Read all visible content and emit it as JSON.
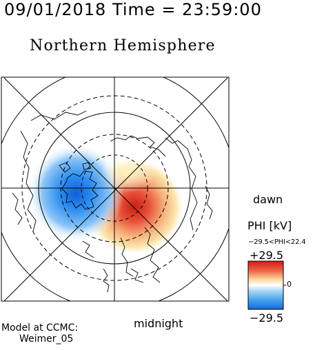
{
  "header": {
    "datetime": "09/01/2018 Time = 23:59:00",
    "hemisphere": "Northern Hemisphere"
  },
  "map": {
    "projection": "polar",
    "labels": {
      "dawn": "dawn",
      "midnight": "midnight"
    },
    "colors": {
      "positive": "#d42a1f",
      "negative": "#1a7fe6",
      "neutral": "#fff8d8"
    }
  },
  "colorbar": {
    "title": "PHI [kV]",
    "range_text": "−29.5<PHI<22.4",
    "max_label": "+29.5",
    "zero_label": "0",
    "min_label": "−29.5",
    "max": 29.5,
    "min": -29.5
  },
  "footer": {
    "model_line1": "Model at CCMC:",
    "model_line2": "Weimer_05"
  }
}
